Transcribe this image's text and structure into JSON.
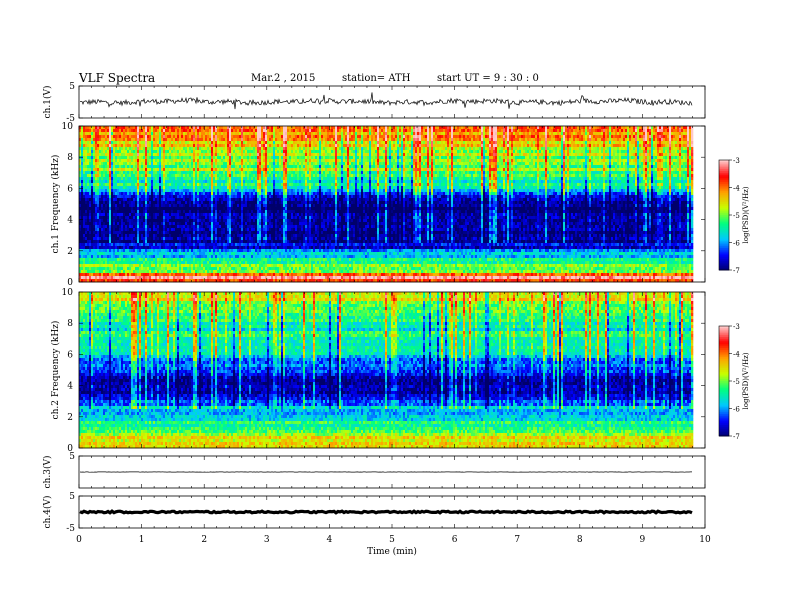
{
  "header": {
    "title": "VLF  Spectra",
    "date": "Mar.2  , 2015",
    "station": "station= ATH",
    "start": "start  UT  =   9  : 30 : 0"
  },
  "chart_data": [
    {
      "type": "line",
      "panel": "ch1",
      "ylabel": "ch.1(V)",
      "xlim": [
        0,
        10
      ],
      "ylim": [
        -5,
        5
      ],
      "yticks": [
        "5",
        "-5"
      ],
      "data_end_min": 9.8,
      "baseline": 0.1,
      "noise_amplitude": 0.8
    },
    {
      "type": "heatmap",
      "panel": "ch1_spectrogram",
      "ylabel": "ch.1 Frequency  (kHz)",
      "xlim": [
        0,
        10
      ],
      "ylim": [
        0,
        10
      ],
      "yticks": [
        "0",
        "2",
        "4",
        "6",
        "8",
        "10"
      ],
      "colorbar": {
        "label": "log(PSD)(V²/Hz)",
        "range": [
          -7,
          -3
        ],
        "ticks": [
          "-3",
          "-4",
          "-5",
          "-6",
          "-7"
        ],
        "colormap": [
          "#00006a",
          "#0000ff",
          "#00c8ff",
          "#00ff80",
          "#c8ff00",
          "#ffa000",
          "#ff0000",
          "#ffc8c8"
        ]
      },
      "band_profile_khz_vs_logpsd": [
        [
          0.0,
          -4.0
        ],
        [
          0.3,
          -3.3
        ],
        [
          0.6,
          -4.6
        ],
        [
          1.0,
          -5.0
        ],
        [
          1.3,
          -5.3
        ],
        [
          1.6,
          -5.7
        ],
        [
          2.0,
          -6.2
        ],
        [
          2.5,
          -6.7
        ],
        [
          3.0,
          -6.9
        ],
        [
          3.5,
          -6.7
        ],
        [
          4.0,
          -6.6
        ],
        [
          4.5,
          -6.8
        ],
        [
          5.0,
          -6.9
        ],
        [
          5.5,
          -6.5
        ],
        [
          6.0,
          -5.8
        ],
        [
          6.5,
          -5.3
        ],
        [
          7.0,
          -5.0
        ],
        [
          7.5,
          -4.9
        ],
        [
          8.0,
          -4.8
        ],
        [
          8.5,
          -4.6
        ],
        [
          9.0,
          -4.3
        ],
        [
          9.5,
          -4.1
        ],
        [
          10.0,
          -4.0
        ]
      ]
    },
    {
      "type": "heatmap",
      "panel": "ch2_spectrogram",
      "ylabel": "ch.2 Frequency  (kHz)",
      "xlim": [
        0,
        10
      ],
      "ylim": [
        0,
        10
      ],
      "yticks": [
        "0",
        "2",
        "4",
        "6",
        "8",
        "10"
      ],
      "colorbar": {
        "label": "log(PSD)(V²/Hz)",
        "range": [
          -7,
          -3
        ],
        "ticks": [
          "-3",
          "-4",
          "-5",
          "-6",
          "-7"
        ],
        "colormap": [
          "#00006a",
          "#0000ff",
          "#00c8ff",
          "#00ff80",
          "#c8ff00",
          "#ffa000",
          "#ff0000",
          "#ffc8c8"
        ]
      },
      "band_profile_khz_vs_logpsd": [
        [
          0.0,
          -4.3
        ],
        [
          0.4,
          -4.5
        ],
        [
          0.8,
          -4.8
        ],
        [
          1.2,
          -4.9
        ],
        [
          1.6,
          -5.3
        ],
        [
          2.0,
          -5.6
        ],
        [
          2.5,
          -5.8
        ],
        [
          3.0,
          -6.2
        ],
        [
          3.5,
          -6.6
        ],
        [
          4.0,
          -6.9
        ],
        [
          4.5,
          -6.7
        ],
        [
          5.0,
          -6.2
        ],
        [
          5.5,
          -6.0
        ],
        [
          6.0,
          -5.8
        ],
        [
          6.5,
          -5.6
        ],
        [
          7.0,
          -5.4
        ],
        [
          7.5,
          -5.5
        ],
        [
          8.0,
          -5.3
        ],
        [
          8.5,
          -5.1
        ],
        [
          9.0,
          -4.9
        ],
        [
          9.5,
          -4.7
        ],
        [
          10.0,
          -4.5
        ]
      ]
    },
    {
      "type": "line",
      "panel": "ch3",
      "ylabel": "ch.3(V)",
      "xlim": [
        0,
        10
      ],
      "ylim": [
        -5,
        5
      ],
      "yticks": [
        "5"
      ],
      "data_end_min": 9.8,
      "baseline": 0,
      "noise_amplitude": 0.05
    },
    {
      "type": "line",
      "panel": "ch4",
      "ylabel": "ch.4(V)",
      "xlim": [
        0,
        10
      ],
      "ylim": [
        -5,
        5
      ],
      "yticks": [
        "5",
        "-5"
      ],
      "data_end_min": 9.8,
      "baseline": 0,
      "noise_amplitude": 0.25
    }
  ],
  "x_axis": {
    "label": "Time  (min)",
    "ticks": [
      "0",
      "1",
      "2",
      "3",
      "4",
      "5",
      "6",
      "7",
      "8",
      "9",
      "10"
    ]
  }
}
